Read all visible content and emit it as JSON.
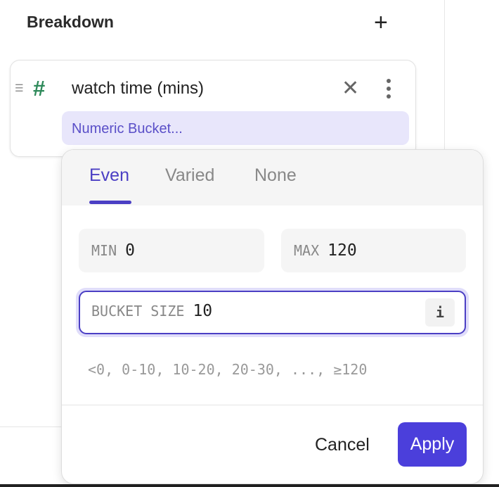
{
  "section": {
    "title": "Breakdown",
    "add_icon": "plus-icon"
  },
  "breakdown_item": {
    "drag_icon": "drag-handle-icon",
    "type_icon": "hash-icon",
    "type_icon_glyph": "#",
    "property": "watch time (mins)",
    "remove_icon": "close-icon",
    "menu_icon": "more-vertical-icon",
    "bucket_label": "Numeric Bucket..."
  },
  "popup": {
    "tabs": [
      {
        "label": "Even",
        "active": true
      },
      {
        "label": "Varied",
        "active": false
      },
      {
        "label": "None",
        "active": false
      }
    ],
    "min": {
      "label": "MIN",
      "value": "0"
    },
    "max": {
      "label": "MAX",
      "value": "120"
    },
    "bucket_size": {
      "label": "BUCKET SIZE",
      "value": "10",
      "info": "i"
    },
    "preview": "<0, 0-10, 10-20, 20-30, ..., ≥120",
    "cancel_label": "Cancel",
    "apply_label": "Apply"
  },
  "colors": {
    "accent": "#4b3fdb",
    "chip_bg": "#e8e6fb",
    "hash": "#2e8a5a"
  }
}
